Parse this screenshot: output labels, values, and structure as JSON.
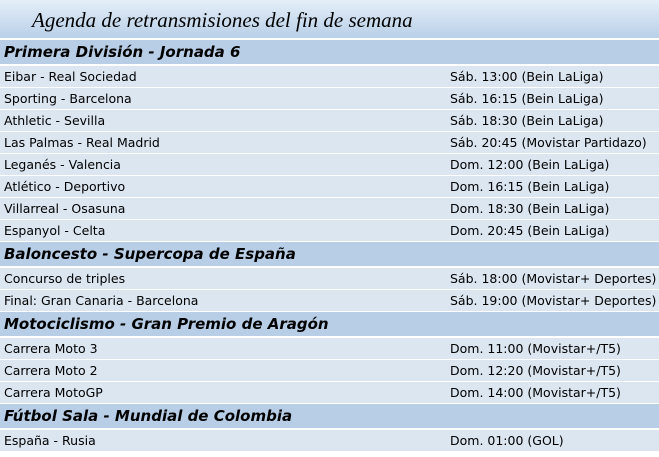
{
  "title": "Agenda de retransmisiones del fin de semana",
  "sections": [
    {
      "heading": "Primera División - Jornada 6",
      "rows": [
        [
          "Eibar - Real Sociedad",
          "Sáb. 13:00 (Bein LaLiga)"
        ],
        [
          "Sporting - Barcelona",
          "Sáb. 16:15 (Bein LaLiga)"
        ],
        [
          "Athletic - Sevilla",
          "Sáb. 18:30 (Bein LaLiga)"
        ],
        [
          "Las Palmas - Real Madrid",
          "Sáb. 20:45 (Movistar Partidazo)"
        ],
        [
          "Leganés - Valencia",
          "Dom. 12:00 (Bein LaLiga)"
        ],
        [
          "Atlético - Deportivo",
          "Dom. 16:15 (Bein LaLiga)"
        ],
        [
          "Villarreal - Osasuna",
          "Dom. 18:30 (Bein LaLiga)"
        ],
        [
          "Espanyol - Celta",
          "Dom. 20:45 (Bein LaLiga)"
        ]
      ]
    },
    {
      "heading": "Baloncesto - Supercopa de España",
      "rows": [
        [
          "Concurso de triples",
          "Sáb. 18:00 (Movistar+ Deportes)"
        ],
        [
          "Final: Gran Canaria - Barcelona",
          "Sáb. 19:00 (Movistar+ Deportes)"
        ]
      ]
    },
    {
      "heading": "Motociclismo - Gran Premio de Aragón",
      "rows": [
        [
          "Carrera Moto 3",
          "Dom. 11:00 (Movistar+/T5)"
        ],
        [
          "Carrera Moto 2",
          "Dom. 12:20 (Movistar+/T5)"
        ],
        [
          "Carrera MotoGP",
          "Dom. 14:00 (Movistar+/T5)"
        ]
      ]
    },
    {
      "heading": "Fútbol Sala - Mundial de Colombia",
      "rows": [
        [
          "España - Rusia",
          "Dom. 01:00 (GOL)"
        ]
      ]
    }
  ]
}
